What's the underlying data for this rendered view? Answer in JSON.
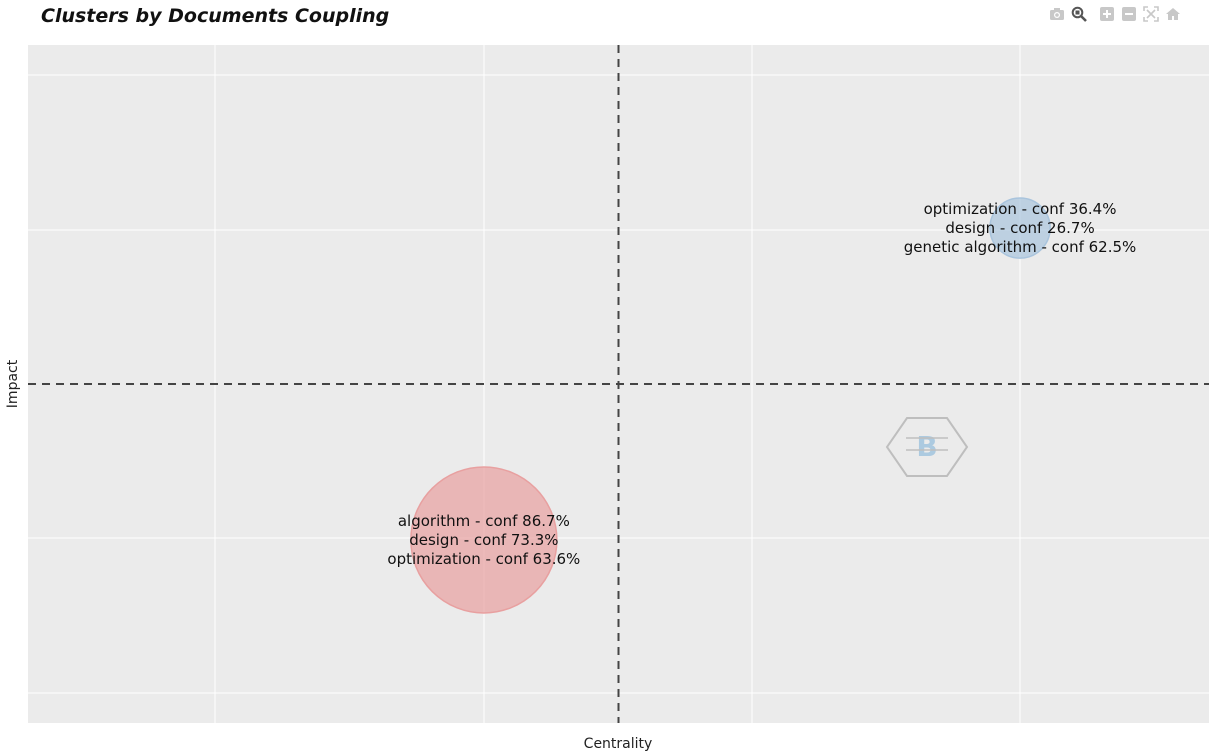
{
  "chart_data": {
    "type": "scatter",
    "title": "Clusters by Documents Coupling",
    "xlabel": "Centrality",
    "ylabel": "Impact",
    "xlim": [
      0,
      1
    ],
    "ylim": [
      0,
      1
    ],
    "grid": true,
    "reference_lines": {
      "x": 0.5,
      "y": 0.5
    },
    "series": [
      {
        "x": 0.386,
        "y": 0.27,
        "size": 1.0,
        "color": "#e8a0a0",
        "labels": [
          "algorithm - conf 86.7%",
          "design - conf 73.3%",
          "optimization - conf 63.6%"
        ]
      },
      {
        "x": 0.84,
        "y": 0.73,
        "size": 0.17,
        "color": "#a9c4dd",
        "labels": [
          "optimization - conf 36.4%",
          "design - conf 26.7%",
          "genetic algorithm - conf 62.5%"
        ]
      }
    ]
  },
  "toolbar": [
    {
      "name": "camera-icon"
    },
    {
      "name": "zoom-icon"
    },
    {
      "name": "zoom-in-icon"
    },
    {
      "name": "zoom-out-icon"
    },
    {
      "name": "autoscale-icon"
    },
    {
      "name": "home-icon"
    }
  ]
}
